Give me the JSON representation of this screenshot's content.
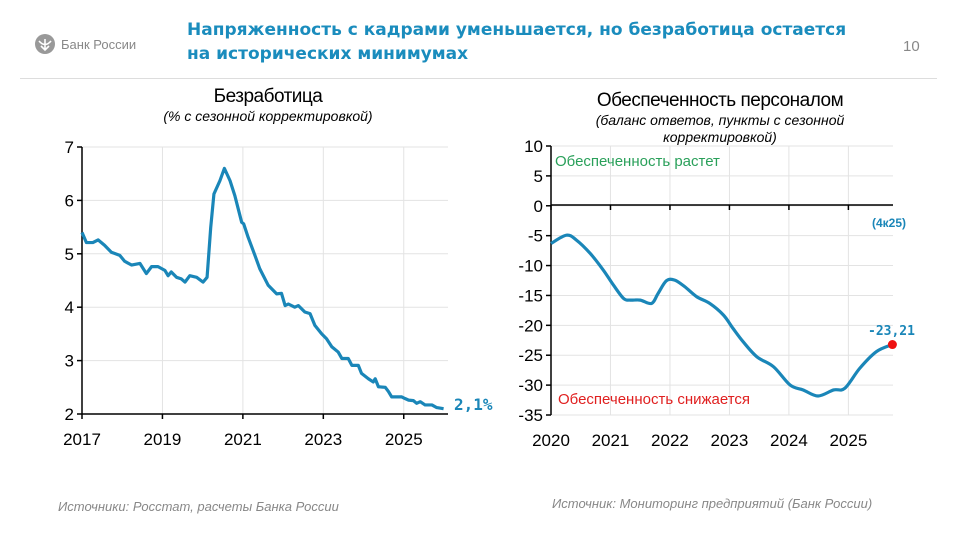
{
  "header": {
    "title_line1": "Напряженность с кадрами уменьшается, но безработица остается",
    "title_line2": "на исторических минимумах",
    "page_number": "10",
    "logo_text": "Банк России",
    "logo_icon": "bank-of-russia-eagle-icon"
  },
  "colors": {
    "accent": "#1a8cbd",
    "line": "#1a86b8",
    "positive": "#2aa05a",
    "negative": "#e02020",
    "marker": "#ee1111",
    "grid": "#e3e3e3"
  },
  "chart_data": [
    {
      "type": "line",
      "title": "Безработица",
      "subtitle": "(% с сезонной корректировкой)",
      "xlim": [
        2017,
        2026.1
      ],
      "ylim": [
        2,
        7
      ],
      "yticks": [
        "7",
        "6",
        "5",
        "4",
        "3",
        "2"
      ],
      "xticks": [
        "2017",
        "2019",
        "2021",
        "2023",
        "2025"
      ],
      "grid": true,
      "end_label": "2,1%",
      "x": [
        2017.0,
        2017.11,
        2017.27,
        2017.4,
        2017.56,
        2017.73,
        2017.94,
        2018.06,
        2018.23,
        2018.44,
        2018.6,
        2018.73,
        2018.89,
        2019.06,
        2019.14,
        2019.22,
        2019.35,
        2019.47,
        2019.56,
        2019.68,
        2019.85,
        2020.01,
        2020.11,
        2020.2,
        2020.28,
        2020.43,
        2020.54,
        2020.68,
        2020.8,
        2020.97,
        2021.02,
        2021.13,
        2021.3,
        2021.42,
        2021.63,
        2021.84,
        2021.96,
        2022.05,
        2022.13,
        2022.29,
        2022.38,
        2022.54,
        2022.67,
        2022.79,
        2022.96,
        2023.08,
        2023.21,
        2023.37,
        2023.46,
        2023.62,
        2023.71,
        2023.87,
        2023.95,
        2024.12,
        2024.24,
        2024.29,
        2024.37,
        2024.54,
        2024.62,
        2024.7,
        2024.83,
        2024.95,
        2025.03,
        2025.12,
        2025.24,
        2025.32,
        2025.41,
        2025.53,
        2025.7,
        2025.82,
        2025.99
      ],
      "y": [
        5.4,
        5.21,
        5.21,
        5.26,
        5.16,
        5.03,
        4.97,
        4.86,
        4.79,
        4.82,
        4.63,
        4.76,
        4.76,
        4.69,
        4.59,
        4.66,
        4.56,
        4.53,
        4.47,
        4.59,
        4.56,
        4.47,
        4.56,
        5.49,
        6.12,
        6.37,
        6.6,
        6.37,
        6.09,
        5.59,
        5.56,
        5.31,
        4.97,
        4.72,
        4.41,
        4.25,
        4.26,
        4.03,
        4.06,
        4.0,
        4.03,
        3.91,
        3.88,
        3.66,
        3.5,
        3.41,
        3.26,
        3.16,
        3.04,
        3.04,
        2.91,
        2.91,
        2.76,
        2.66,
        2.6,
        2.66,
        2.51,
        2.5,
        2.42,
        2.32,
        2.32,
        2.32,
        2.29,
        2.26,
        2.25,
        2.2,
        2.23,
        2.17,
        2.17,
        2.12,
        2.1
      ]
    },
    {
      "type": "line",
      "title": "Обеспеченность персоналом",
      "subtitle_line1": "(баланс ответов, пункты с сезонной",
      "subtitle_line2": "корректировкой)",
      "xlim": [
        2020,
        2025.75
      ],
      "ylim": [
        -35,
        10
      ],
      "yticks": [
        "10",
        "5",
        "0",
        "-5",
        "-10",
        "-15",
        "-20",
        "-25",
        "-30",
        "-35"
      ],
      "xticks": [
        "2020",
        "2021",
        "2022",
        "2023",
        "2024",
        "2025"
      ],
      "grid": true,
      "annotation_top": "Обеспеченность растет",
      "annotation_bottom": "Обеспеченность снижается",
      "period_label": "(4к25)",
      "end_label": "-23,21",
      "x": [
        2020.0,
        2020.26,
        2020.43,
        2020.66,
        2020.88,
        2021.05,
        2021.22,
        2021.33,
        2021.5,
        2021.69,
        2021.8,
        2021.94,
        2022.08,
        2022.25,
        2022.45,
        2022.67,
        2022.9,
        2023.06,
        2023.23,
        2023.46,
        2023.74,
        2024.02,
        2024.24,
        2024.49,
        2024.75,
        2024.94,
        2025.19,
        2025.47,
        2025.74
      ],
      "y": [
        -6.31,
        -4.92,
        -5.76,
        -7.98,
        -10.77,
        -13.27,
        -15.5,
        -15.78,
        -15.78,
        -16.34,
        -14.67,
        -12.55,
        -12.44,
        -13.55,
        -15.22,
        -16.34,
        -18.29,
        -20.51,
        -22.74,
        -25.25,
        -26.92,
        -29.98,
        -30.81,
        -31.82,
        -30.81,
        -30.53,
        -27.2,
        -24.41,
        -23.21
      ]
    }
  ],
  "sources": {
    "left": "Источники: Росстат, расчеты Банка России",
    "right": "Источник: Мониторинг предприятий (Банк России)"
  }
}
